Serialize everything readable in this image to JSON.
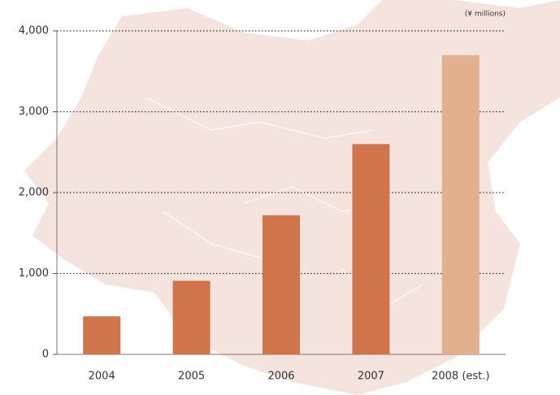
{
  "chart_data": {
    "type": "bar",
    "unit_label": "(¥ millions)",
    "categories": [
      "2004",
      "2005",
      "2006",
      "2007",
      "2008 (est.)"
    ],
    "values": [
      470,
      910,
      1720,
      2600,
      3700
    ],
    "colors": [
      "#cf744b",
      "#cf744b",
      "#cf744b",
      "#cf744b",
      "#e3b08d"
    ],
    "ylim": [
      0,
      4000
    ],
    "yticks": [
      0,
      {
        "value": 1000,
        "label": "1,000"
      },
      {
        "value": 2000,
        "label": "2,000"
      },
      {
        "value": 3000,
        "label": "3,000"
      },
      {
        "value": 4000,
        "label": "4,000"
      }
    ],
    "grid": true
  }
}
